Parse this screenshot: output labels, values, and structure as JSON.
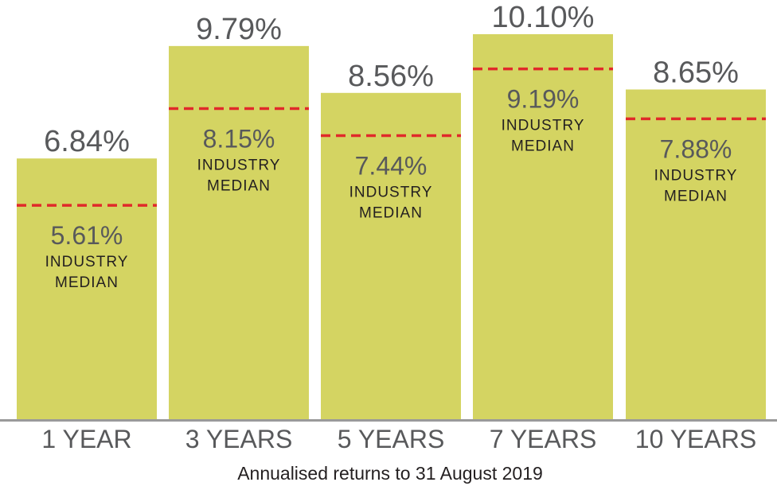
{
  "chart_data": {
    "type": "bar",
    "categories": [
      "1 YEAR",
      "3 YEARS",
      "5 YEARS",
      "7 YEARS",
      "10 YEARS"
    ],
    "series": [
      {
        "values": [
          6.84,
          9.79,
          8.56,
          10.1,
          8.65
        ]
      },
      {
        "values": [
          5.61,
          8.15,
          7.44,
          9.19,
          7.88
        ]
      }
    ],
    "value_labels": [
      "6.84%",
      "9.79%",
      "8.56%",
      "10.10%",
      "8.65%"
    ],
    "median_labels": [
      "5.61%",
      "8.15%",
      "7.44%",
      "9.19%",
      "7.88%"
    ],
    "median_caption": [
      "INDUSTRY",
      "MEDIAN"
    ],
    "xlabel": "Annualised returns to 31 August 2019",
    "ylabel": "",
    "ylim": [
      0,
      10.1
    ],
    "grid": false,
    "legend": "none",
    "colors": {
      "bar": "#d4d462",
      "median_line": "#e02a2a",
      "axis": "#9a9a9a",
      "text_value": "#58595b",
      "text_caption": "#231f20"
    }
  }
}
